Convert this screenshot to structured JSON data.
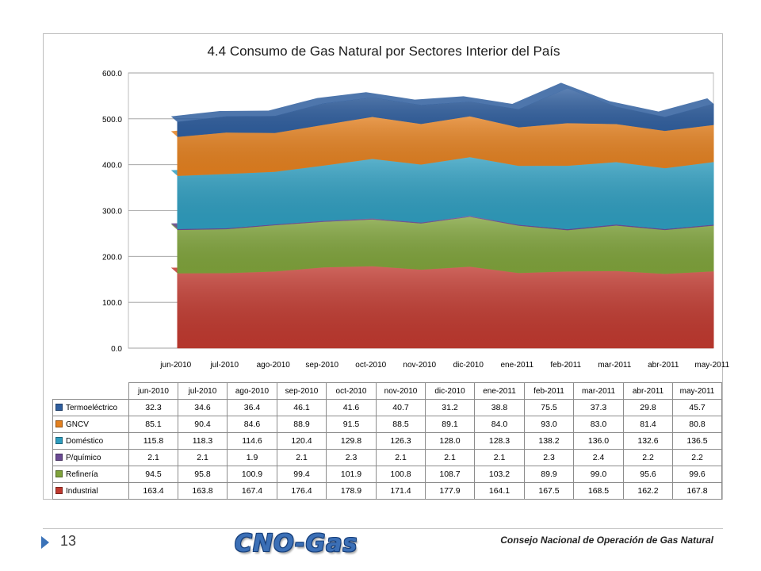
{
  "slide": {
    "page_number": "13",
    "logo_text": "CNO-Gas",
    "footer_text": "Consejo Nacional de Operación de Gas Natural"
  },
  "chart_data": {
    "type": "area",
    "stacked": true,
    "title": "4.4 Consumo de Gas Natural  por Sectores Interior del País",
    "xlabel": "",
    "ylabel": "",
    "ylim": [
      0,
      600
    ],
    "yticks": [
      "0.0",
      "100.0",
      "200.0",
      "300.0",
      "400.0",
      "500.0",
      "600.0"
    ],
    "grid": true,
    "categories": [
      "jun-2010",
      "jul-2010",
      "ago-2010",
      "sep-2010",
      "oct-2010",
      "nov-2010",
      "dic-2010",
      "ene-2011",
      "feb-2011",
      "mar-2011",
      "abr-2011",
      "may-2011"
    ],
    "series": [
      {
        "name": "Industrial",
        "color": "#c0392f",
        "values": [
          163.4,
          163.8,
          167.4,
          176.4,
          178.9,
          171.4,
          177.9,
          164.1,
          167.5,
          168.5,
          162.2,
          167.8
        ]
      },
      {
        "name": "Refinería",
        "color": "#7fa33b",
        "values": [
          94.5,
          95.8,
          100.9,
          99.4,
          101.9,
          100.8,
          108.7,
          103.2,
          89.9,
          99.0,
          95.6,
          99.6
        ]
      },
      {
        "name": "P/químico",
        "color": "#6a4a93",
        "values": [
          2.1,
          2.1,
          1.9,
          2.1,
          2.3,
          2.1,
          2.1,
          2.1,
          2.3,
          2.4,
          2.2,
          2.2
        ]
      },
      {
        "name": "Doméstico",
        "color": "#2e9dbf",
        "values": [
          115.8,
          118.3,
          114.6,
          120.4,
          129.8,
          126.3,
          128.0,
          128.3,
          138.2,
          136.0,
          132.6,
          136.5
        ]
      },
      {
        "name": "GNCV",
        "color": "#e3801f",
        "values": [
          85.1,
          90.4,
          84.6,
          88.9,
          91.5,
          88.5,
          89.1,
          84.0,
          93.0,
          83.0,
          81.4,
          80.8
        ]
      },
      {
        "name": "Termoeléctrico",
        "color": "#2f5e9e",
        "values": [
          32.3,
          34.6,
          36.4,
          46.1,
          41.6,
          40.7,
          31.2,
          38.8,
          75.5,
          37.3,
          29.8,
          45.7
        ]
      }
    ],
    "table_rows": [
      {
        "name": "Termoeléctrico",
        "color": "#2f5e9e",
        "values": [
          "32.3",
          "34.6",
          "36.4",
          "46.1",
          "41.6",
          "40.7",
          "31.2",
          "38.8",
          "75.5",
          "37.3",
          "29.8",
          "45.7"
        ]
      },
      {
        "name": "GNCV",
        "color": "#e3801f",
        "values": [
          "85.1",
          "90.4",
          "84.6",
          "88.9",
          "91.5",
          "88.5",
          "89.1",
          "84.0",
          "93.0",
          "83.0",
          "81.4",
          "80.8"
        ]
      },
      {
        "name": "Doméstico",
        "color": "#2e9dbf",
        "values": [
          "115.8",
          "118.3",
          "114.6",
          "120.4",
          "129.8",
          "126.3",
          "128.0",
          "128.3",
          "138.2",
          "136.0",
          "132.6",
          "136.5"
        ]
      },
      {
        "name": "P/químico",
        "color": "#6a4a93",
        "values": [
          "2.1",
          "2.1",
          "1.9",
          "2.1",
          "2.3",
          "2.1",
          "2.1",
          "2.1",
          "2.3",
          "2.4",
          "2.2",
          "2.2"
        ]
      },
      {
        "name": "Refinería",
        "color": "#7fa33b",
        "values": [
          "94.5",
          "95.8",
          "100.9",
          "99.4",
          "101.9",
          "100.8",
          "108.7",
          "103.2",
          "89.9",
          "99.0",
          "95.6",
          "99.6"
        ]
      },
      {
        "name": "Industrial",
        "color": "#c0392f",
        "values": [
          "163.4",
          "163.8",
          "167.4",
          "176.4",
          "178.9",
          "171.4",
          "177.9",
          "164.1",
          "167.5",
          "168.5",
          "162.2",
          "167.8"
        ]
      }
    ]
  }
}
